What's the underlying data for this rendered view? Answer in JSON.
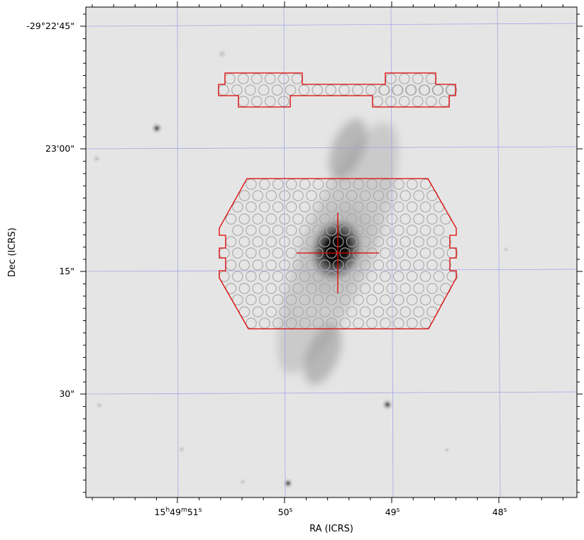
{
  "axes": {
    "xlabel": "RA (ICRS)",
    "ylabel": "Dec (ICRS)",
    "x_ticks": [
      {
        "main": "15",
        "sup1": "h",
        "mid": "49",
        "sup2": "m",
        "tail": "51",
        "sup3": "s"
      },
      {
        "main": "50",
        "sup1": "s"
      },
      {
        "main": "49",
        "sup1": "s"
      },
      {
        "main": "48",
        "sup1": "s"
      }
    ],
    "y_ticks": [
      "-29°22'45\"",
      "23'00\"",
      "15\"",
      "30\""
    ]
  },
  "image": {
    "description_colors": {
      "background": "#e4e4e4",
      "grid": "#8888ee",
      "footprint": "#e00000",
      "fibers": "#a8a8a8"
    }
  }
}
